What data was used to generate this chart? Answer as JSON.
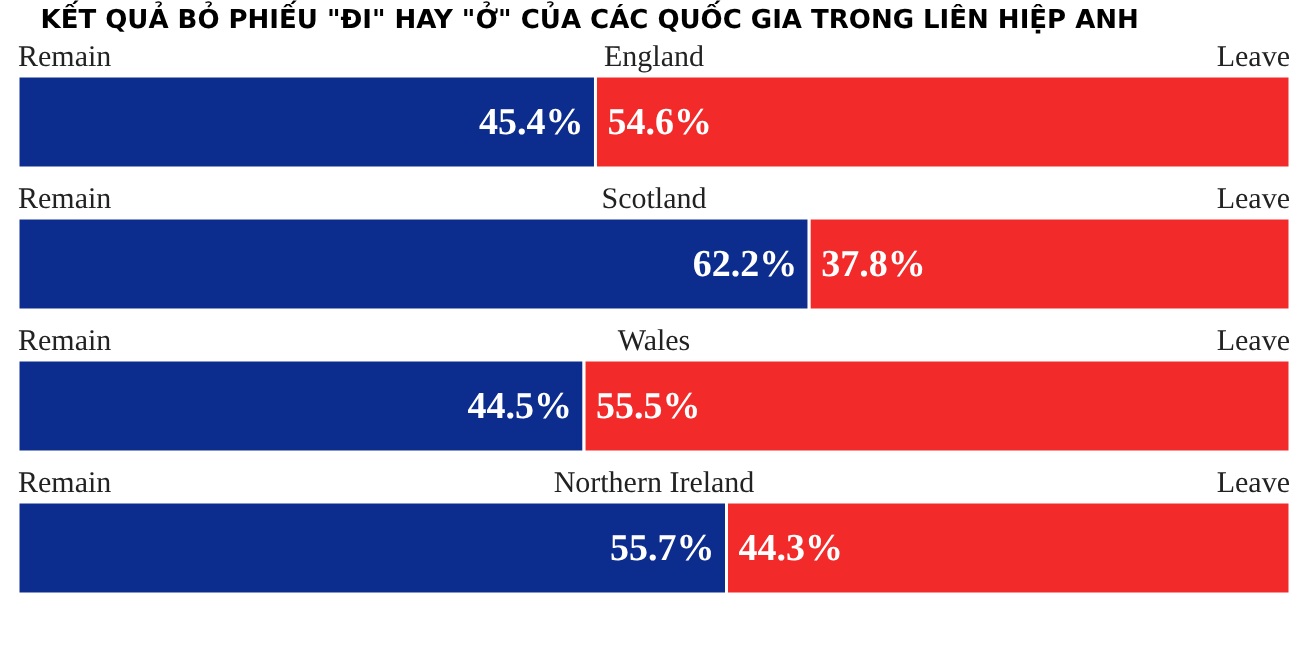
{
  "chart_data": [
    {
      "type": "bar",
      "title": "England",
      "annotations": [
        "KẾT QUẢ BỎ PHIẾU \"ĐI\" HAY \"Ở\" CỦA CÁC QUỐC GIA TRONG LIÊN HIỆP ANH"
      ],
      "orientation": "horizontal",
      "stacked": true,
      "categories": [
        null
      ],
      "tick_labels": false,
      "series": [
        {
          "name": "Remain",
          "color": "#0c2d8e",
          "values": [
            45.4
          ],
          "value_labels": [
            "45.4%"
          ]
        },
        {
          "name": "Leave",
          "color": "#f32a2a",
          "values": [
            54.6
          ],
          "value_labels": [
            "54.6%"
          ]
        }
      ]
    },
    {
      "type": "bar",
      "title": "Scotland",
      "orientation": "horizontal",
      "stacked": true,
      "categories": [
        null
      ],
      "tick_labels": false,
      "series": [
        {
          "name": "Remain",
          "color": "#0c2d8e",
          "values": [
            62.2
          ],
          "value_labels": [
            "62.2%"
          ]
        },
        {
          "name": "Leave",
          "color": "#f32a2a",
          "values": [
            37.8
          ],
          "value_labels": [
            "37.8%"
          ]
        }
      ]
    },
    {
      "type": "bar",
      "title": "Wales",
      "orientation": "horizontal",
      "stacked": true,
      "categories": [
        null
      ],
      "tick_labels": false,
      "series": [
        {
          "name": "Remain",
          "color": "#0c2d8e",
          "values": [
            44.5
          ],
          "value_labels": [
            "44.5%"
          ]
        },
        {
          "name": "Leave",
          "color": "#f32a2a",
          "values": [
            55.5
          ],
          "value_labels": [
            "55.5%"
          ]
        }
      ]
    },
    {
      "type": "bar",
      "title": "Northern Ireland",
      "orientation": "horizontal",
      "stacked": true,
      "categories": [
        null
      ],
      "tick_labels": false,
      "series": [
        {
          "name": "Remain",
          "color": "#0c2d8e",
          "values": [
            55.7
          ],
          "value_labels": [
            "55.7%"
          ]
        },
        {
          "name": "Leave",
          "color": "#f32a2a",
          "values": [
            44.3
          ],
          "value_labels": [
            "44.3%"
          ]
        }
      ]
    }
  ]
}
